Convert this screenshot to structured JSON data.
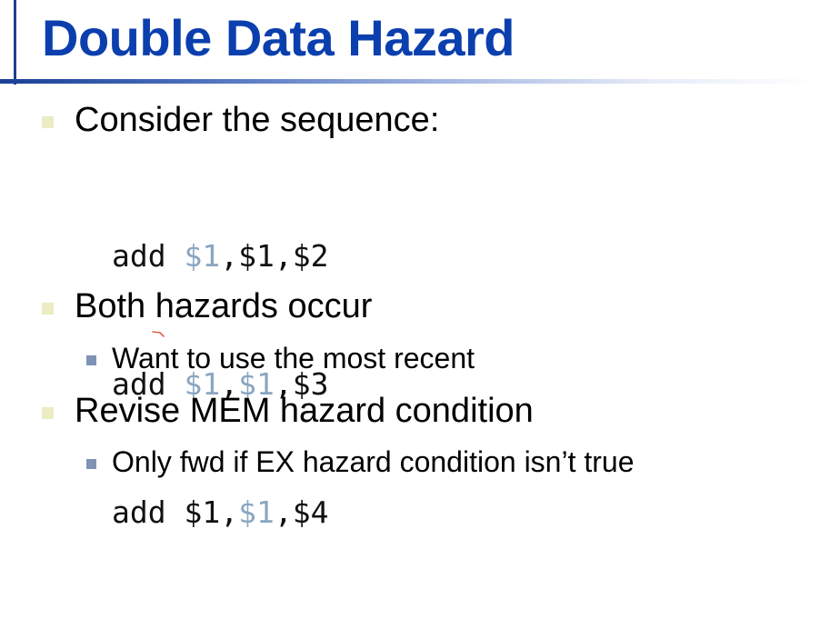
{
  "slide": {
    "title": "Double Data Hazard",
    "bullets": [
      {
        "text": "Consider the sequence:"
      },
      {
        "text": "Both hazards occur",
        "sub": [
          "Want to use the most recent"
        ]
      },
      {
        "text": "Revise MEM hazard condition",
        "sub": [
          "Only fwd if EX hazard condition isn’t true"
        ]
      }
    ],
    "code": [
      {
        "op": "add",
        "rd": "$1",
        "rs": "$1",
        "rt": "$2",
        "highlight": [
          "rd"
        ]
      },
      {
        "op": "add",
        "rd": "$1",
        "rs": "$1",
        "rt": "$3",
        "highlight": [
          "rd",
          "rs"
        ]
      },
      {
        "op": "add",
        "rd": "$1",
        "rs": "$1",
        "rt": "$4",
        "highlight": [
          "rs"
        ]
      }
    ],
    "colors": {
      "title": "#0b3fae",
      "register_highlight": "#8aa6c1",
      "bullet_l1": "#ecebc4",
      "bullet_l2": "#7f93b6",
      "annotation_tick": "#e0604a"
    }
  }
}
